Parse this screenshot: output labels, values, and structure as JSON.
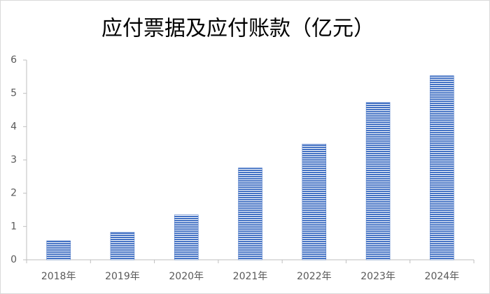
{
  "chart_data": {
    "type": "bar",
    "title": "应付票据及应付账款（亿元）",
    "categories": [
      "2018年",
      "2019年",
      "2020年",
      "2021年",
      "2022年",
      "2023年",
      "2024年"
    ],
    "values": [
      0.57,
      0.83,
      1.35,
      2.76,
      3.48,
      4.73,
      5.53
    ],
    "color": "#4472c4",
    "ylim": [
      0,
      6
    ],
    "yticks": [
      0,
      1,
      2,
      3,
      4,
      5,
      6
    ],
    "grid": false
  }
}
